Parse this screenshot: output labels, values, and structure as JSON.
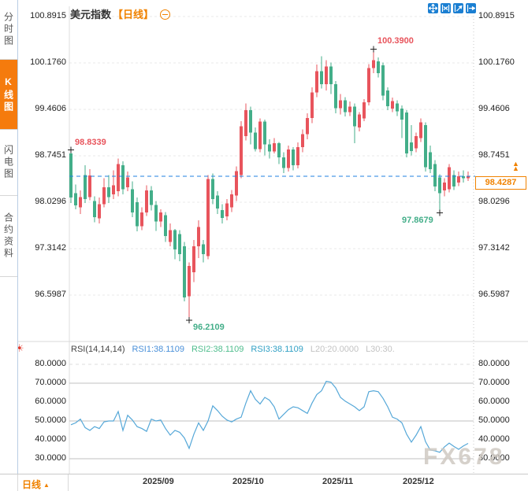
{
  "watermark": "FX678",
  "sidebar": {
    "tabs": [
      {
        "label": "分时图",
        "active": false
      },
      {
        "label": "K线图",
        "active": true
      },
      {
        "label": "闪电图",
        "active": false
      },
      {
        "label": "合约资料",
        "active": false
      }
    ]
  },
  "header": {
    "title": "美元指数",
    "timeframe_tag": "【日线】"
  },
  "toolbar": {
    "icons": [
      "pan",
      "fit-width",
      "fit-scale",
      "goto-latest"
    ]
  },
  "bottom_bar": {
    "timeframe_label": "日线"
  },
  "price_tag": {
    "value": "98.4287"
  },
  "colors": {
    "accent_orange": "#f08200",
    "up_red": "#e8545c",
    "down_green": "#43ae89",
    "price_line_blue": "#1f82e0",
    "rsi_line_blue": "#56a8d8",
    "icon_blue": "#1b7fd2"
  },
  "chart_data": [
    {
      "type": "candlestick",
      "panel": "price",
      "title": "美元指数 日线",
      "y_axis_labels": [
        "100.8915",
        "100.1760",
        "99.4606",
        "98.7451",
        "98.0296",
        "97.3142",
        "96.5987"
      ],
      "ylim": [
        96.2,
        101.0
      ],
      "grid": "horizontal-dashed",
      "current_price": 98.4287,
      "x_ticks": [
        {
          "label": "2025/09",
          "index": 15
        },
        {
          "label": "2025/10",
          "index": 34
        },
        {
          "label": "2025/11",
          "index": 53
        },
        {
          "label": "2025/12",
          "index": 70
        }
      ],
      "annotations": [
        {
          "text": "98.8339",
          "index": 0,
          "price": 98.8339,
          "kind": "high",
          "placement": "above-right",
          "color": "up"
        },
        {
          "text": "100.3900",
          "index": 64,
          "price": 100.39,
          "kind": "high",
          "placement": "above-right",
          "color": "up"
        },
        {
          "text": "96.2109",
          "index": 25,
          "price": 96.2109,
          "kind": "low",
          "placement": "below-right",
          "color": "down"
        },
        {
          "text": "97.8679",
          "index": 78,
          "price": 97.8679,
          "kind": "low",
          "placement": "below-left",
          "color": "down"
        }
      ],
      "candles_format": [
        "open",
        "high",
        "low",
        "close"
      ],
      "candles": [
        [
          98.78,
          98.834,
          98.02,
          98.1
        ],
        [
          98.17,
          98.3,
          97.92,
          97.98
        ],
        [
          97.95,
          98.21,
          97.85,
          98.11
        ],
        [
          98.45,
          98.6,
          98.02,
          98.08
        ],
        [
          98.11,
          98.54,
          98.06,
          98.44
        ],
        [
          98.05,
          98.12,
          97.72,
          97.8
        ],
        [
          97.78,
          98.1,
          97.7,
          98.0
        ],
        [
          98.0,
          98.4,
          97.95,
          98.26
        ],
        [
          98.26,
          98.45,
          98.02,
          98.11
        ],
        [
          98.15,
          98.52,
          98.08,
          98.29
        ],
        [
          98.2,
          98.7,
          98.12,
          98.62
        ],
        [
          98.6,
          98.66,
          98.15,
          98.23
        ],
        [
          98.26,
          98.5,
          98.2,
          98.41
        ],
        [
          98.23,
          98.35,
          97.8,
          97.87
        ],
        [
          98.03,
          98.1,
          97.58,
          97.66
        ],
        [
          97.66,
          97.95,
          97.6,
          97.87
        ],
        [
          97.87,
          98.29,
          97.82,
          98.21
        ],
        [
          98.21,
          98.28,
          97.9,
          97.99
        ],
        [
          97.99,
          98.05,
          97.59,
          97.73
        ],
        [
          97.73,
          97.92,
          97.65,
          97.87
        ],
        [
          97.83,
          97.88,
          97.42,
          97.51
        ],
        [
          97.42,
          97.7,
          97.35,
          97.6
        ],
        [
          97.6,
          97.62,
          97.15,
          97.3
        ],
        [
          97.54,
          97.6,
          97.12,
          97.23
        ],
        [
          97.35,
          97.42,
          96.5,
          96.56
        ],
        [
          96.58,
          97.1,
          96.2109,
          97.05
        ],
        [
          96.95,
          97.45,
          96.8,
          97.35
        ],
        [
          97.35,
          97.75,
          97.17,
          97.65
        ],
        [
          97.38,
          97.45,
          97.1,
          97.23
        ],
        [
          97.2,
          98.45,
          97.15,
          98.39
        ],
        [
          98.39,
          98.47,
          98.0,
          98.08
        ],
        [
          98.13,
          98.2,
          97.85,
          97.93
        ],
        [
          97.91,
          98.0,
          97.7,
          97.79
        ],
        [
          97.81,
          98.08,
          97.75,
          98.01
        ],
        [
          97.95,
          98.22,
          97.88,
          98.15
        ],
        [
          98.13,
          98.58,
          98.05,
          98.51
        ],
        [
          98.45,
          99.28,
          98.4,
          99.2
        ],
        [
          99.05,
          99.55,
          98.98,
          99.45
        ],
        [
          99.45,
          99.5,
          98.92,
          99.1
        ],
        [
          99.1,
          99.18,
          98.81,
          98.85
        ],
        [
          98.85,
          99.32,
          98.8,
          99.27
        ],
        [
          99.27,
          99.3,
          98.75,
          98.92
        ],
        [
          98.92,
          99.0,
          98.7,
          98.81
        ],
        [
          98.81,
          99.02,
          98.78,
          98.94
        ],
        [
          98.94,
          98.96,
          98.62,
          98.72
        ],
        [
          98.72,
          98.8,
          98.48,
          98.56
        ],
        [
          98.56,
          98.9,
          98.5,
          98.84
        ],
        [
          98.84,
          98.88,
          98.52,
          98.6
        ],
        [
          98.6,
          98.95,
          98.55,
          98.88
        ],
        [
          98.88,
          99.15,
          98.8,
          99.08
        ],
        [
          99.08,
          99.4,
          99.0,
          99.33
        ],
        [
          99.33,
          99.8,
          99.25,
          99.72
        ],
        [
          99.72,
          100.15,
          99.65,
          100.05
        ],
        [
          100.05,
          100.28,
          99.78,
          99.85
        ],
        [
          99.85,
          100.22,
          99.75,
          100.12
        ],
        [
          100.12,
          100.18,
          99.7,
          99.85
        ],
        [
          99.85,
          99.9,
          99.4,
          99.48
        ],
        [
          99.48,
          99.7,
          99.38,
          99.6
        ],
        [
          99.6,
          99.65,
          99.35,
          99.42
        ],
        [
          99.42,
          99.58,
          99.36,
          99.5
        ],
        [
          99.5,
          99.55,
          98.94,
          99.2
        ],
        [
          99.18,
          99.42,
          99.12,
          99.38
        ],
        [
          99.32,
          99.62,
          99.28,
          99.57
        ],
        [
          99.57,
          100.16,
          99.52,
          100.1
        ],
        [
          100.1,
          100.39,
          100.02,
          100.22
        ],
        [
          100.2,
          100.26,
          99.95,
          100.02
        ],
        [
          100.14,
          100.18,
          99.6,
          99.67
        ],
        [
          99.75,
          99.8,
          99.45,
          99.51
        ],
        [
          99.47,
          99.64,
          99.42,
          99.59
        ],
        [
          99.55,
          99.6,
          99.36,
          99.43
        ],
        [
          99.47,
          99.52,
          99.02,
          99.3
        ],
        [
          99.41,
          99.45,
          98.72,
          98.78
        ],
        [
          98.95,
          99.22,
          98.75,
          98.82
        ],
        [
          98.86,
          99.1,
          98.8,
          99.05
        ],
        [
          99.02,
          99.32,
          98.96,
          99.26
        ],
        [
          99.22,
          99.26,
          98.5,
          98.57
        ],
        [
          98.8,
          98.9,
          98.48,
          98.54
        ],
        [
          98.62,
          98.68,
          98.2,
          98.27
        ],
        [
          98.41,
          98.46,
          97.8679,
          98.17
        ],
        [
          98.21,
          98.4,
          98.12,
          98.33
        ],
        [
          98.23,
          98.62,
          98.18,
          98.57
        ],
        [
          98.45,
          98.52,
          98.22,
          98.27
        ],
        [
          98.33,
          98.5,
          98.28,
          98.43
        ],
        [
          98.43,
          98.52,
          98.33,
          98.4
        ],
        [
          98.4,
          98.5,
          98.36,
          98.4287
        ]
      ]
    },
    {
      "type": "line",
      "panel": "rsi",
      "indicator": "RSI",
      "header": {
        "name": "RSI(14,14,14)",
        "rsi1": "RSI1:38.1109",
        "rsi2": "RSI2:38.1109",
        "rsi3": "RSI3:38.1109",
        "l20": "L20:20.0000",
        "l30": "L30:30."
      },
      "y_axis_labels": [
        "80.0000",
        "70.0000",
        "60.0000",
        "50.0000",
        "40.0000",
        "30.0000"
      ],
      "ylim": [
        23,
        83
      ],
      "levels_dashed": [
        80
      ],
      "levels_solid": [
        70,
        50,
        30
      ],
      "values": [
        48,
        49,
        51,
        46.5,
        45,
        47,
        46,
        49.5,
        50,
        50,
        55,
        45,
        53,
        50.5,
        47,
        46,
        44.5,
        51,
        50,
        50.5,
        46,
        42.5,
        45,
        44,
        41,
        35.5,
        43,
        49,
        45,
        50,
        58,
        55.5,
        52.5,
        50.5,
        49.5,
        51,
        52,
        59.5,
        66,
        61.5,
        59,
        62.5,
        61,
        57.5,
        51,
        53.5,
        56,
        57.5,
        57,
        55.5,
        54,
        59.5,
        64,
        66,
        71,
        70.5,
        67.5,
        62.5,
        60.5,
        59,
        57.5,
        55.5,
        57.5,
        65.5,
        66,
        65.5,
        62,
        57.5,
        52,
        51,
        49,
        43,
        38.8,
        42.5,
        47,
        39,
        34.6,
        34.2,
        33.4,
        36.3,
        38.3,
        36.5,
        35,
        36.8,
        38.1109
      ]
    }
  ]
}
